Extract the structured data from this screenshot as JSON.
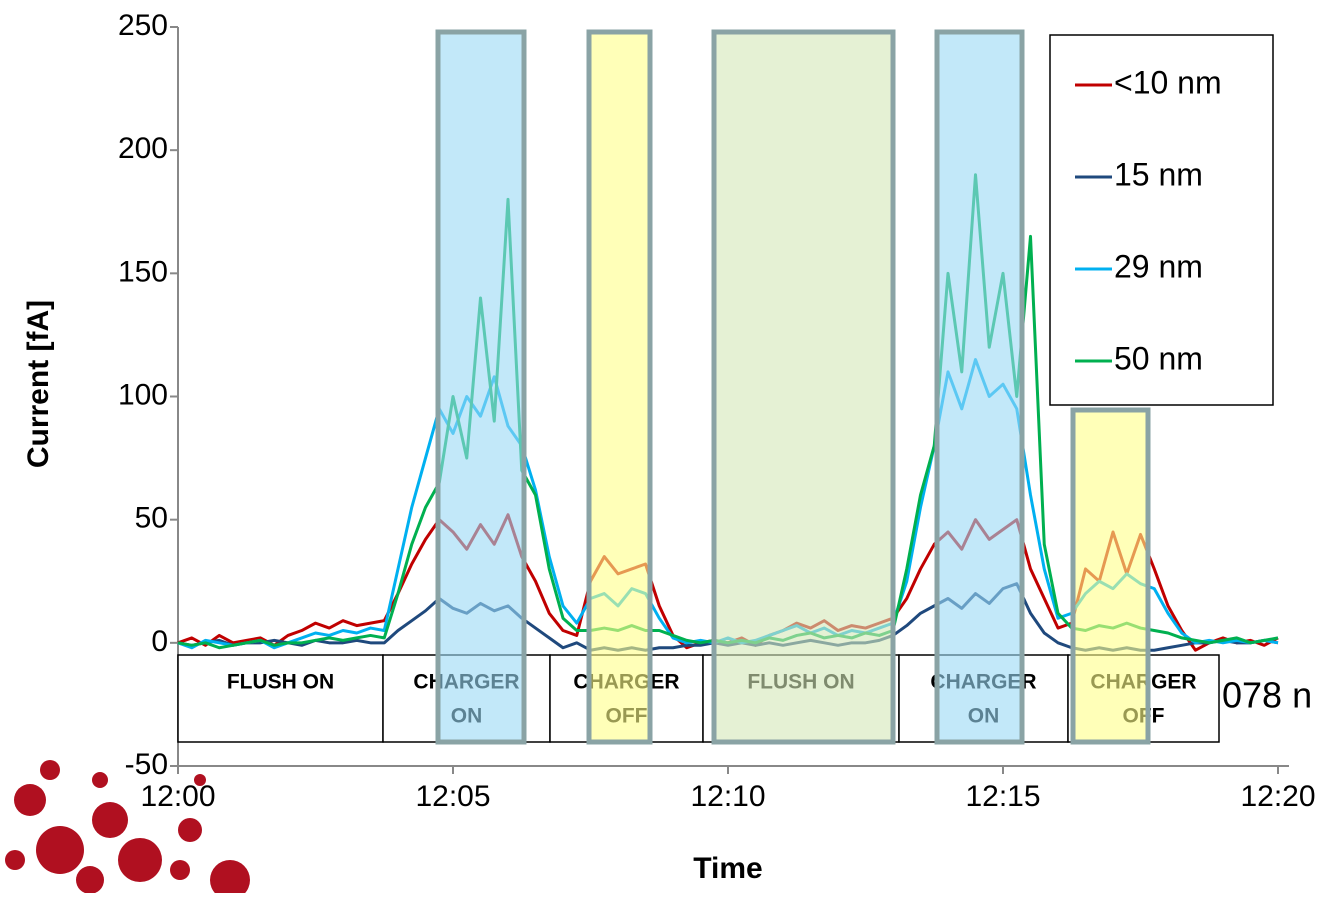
{
  "chart_data": {
    "type": "line",
    "x_label": "Time",
    "y_label": "Current [fA]",
    "xlim": [
      0,
      20.2
    ],
    "xticks": [
      {
        "value": 0,
        "label": "12:00"
      },
      {
        "value": 5,
        "label": "12:05"
      },
      {
        "value": 10,
        "label": "12:10"
      },
      {
        "value": 15,
        "label": "12:15"
      },
      {
        "value": 20,
        "label": "12:20"
      }
    ],
    "ylim": [
      -50,
      250
    ],
    "yticks": [
      -50,
      0,
      50,
      100,
      150,
      200,
      250
    ],
    "legend": "upper right",
    "phases": [
      [
        "FLUSH ON"
      ],
      [
        "CHARGER",
        "ON"
      ],
      [
        "CHARGER",
        "OFF"
      ],
      [
        "FLUSH ON"
      ],
      [
        "CHARGER",
        "ON"
      ],
      [
        "CHARGER",
        "OFF"
      ]
    ],
    "annotation": "078 n",
    "x": [
      0,
      0.25,
      0.5,
      0.75,
      1,
      1.25,
      1.5,
      1.75,
      2,
      2.25,
      2.5,
      2.75,
      3,
      3.25,
      3.5,
      3.75,
      4,
      4.25,
      4.5,
      4.75,
      5,
      5.25,
      5.5,
      5.75,
      6,
      6.25,
      6.5,
      6.75,
      7,
      7.25,
      7.5,
      7.75,
      8,
      8.25,
      8.5,
      8.75,
      9,
      9.25,
      9.5,
      9.75,
      10,
      10.25,
      10.5,
      10.75,
      11,
      11.25,
      11.5,
      11.75,
      12,
      12.25,
      12.5,
      12.75,
      13,
      13.25,
      13.5,
      13.75,
      14,
      14.25,
      14.5,
      14.75,
      15,
      15.25,
      15.5,
      15.75,
      16,
      16.25,
      16.5,
      16.75,
      17,
      17.25,
      17.5,
      17.75,
      18,
      18.25,
      18.5,
      18.75,
      19,
      19.25,
      19.5,
      19.75,
      20
    ],
    "series": [
      {
        "name": "<10 nm",
        "color": "#c00000",
        "values": [
          0,
          2,
          -1,
          3,
          0,
          1,
          2,
          -1,
          3,
          5,
          8,
          6,
          9,
          7,
          8,
          9,
          20,
          32,
          42,
          50,
          45,
          38,
          48,
          40,
          52,
          35,
          25,
          12,
          5,
          3,
          25,
          35,
          28,
          30,
          32,
          15,
          3,
          -2,
          0,
          1,
          0,
          2,
          -1,
          3,
          5,
          8,
          6,
          9,
          5,
          7,
          6,
          8,
          10,
          18,
          30,
          40,
          45,
          38,
          50,
          42,
          46,
          50,
          30,
          18,
          6,
          8,
          30,
          25,
          45,
          28,
          44,
          30,
          15,
          5,
          -3,
          0,
          2,
          0,
          1,
          -1,
          2
        ]
      },
      {
        "name": "15 nm",
        "color": "#1f497d",
        "values": [
          0,
          -1,
          0,
          1,
          -1,
          0,
          0,
          1,
          0,
          -1,
          1,
          0,
          0,
          1,
          0,
          0,
          5,
          9,
          13,
          18,
          14,
          12,
          16,
          13,
          15,
          10,
          6,
          2,
          -2,
          0,
          -3,
          -2,
          -3,
          -2,
          -3,
          -2,
          -2,
          -1,
          -1,
          0,
          -1,
          0,
          -1,
          0,
          -1,
          0,
          1,
          0,
          -1,
          0,
          0,
          1,
          3,
          7,
          12,
          15,
          18,
          14,
          20,
          16,
          22,
          24,
          12,
          4,
          0,
          -2,
          -3,
          -2,
          -3,
          -2,
          -3,
          -3,
          -2,
          -1,
          0,
          0,
          1,
          0,
          0,
          1,
          0
        ]
      },
      {
        "name": "29 nm",
        "color": "#00b0f0",
        "values": [
          0,
          -2,
          1,
          0,
          -1,
          0,
          1,
          -2,
          0,
          2,
          4,
          3,
          5,
          4,
          6,
          5,
          30,
          55,
          75,
          95,
          85,
          100,
          92,
          108,
          88,
          80,
          62,
          35,
          15,
          8,
          18,
          20,
          15,
          22,
          20,
          10,
          2,
          0,
          1,
          0,
          2,
          0,
          1,
          3,
          5,
          7,
          4,
          6,
          3,
          5,
          4,
          6,
          8,
          25,
          55,
          80,
          110,
          95,
          115,
          100,
          105,
          95,
          60,
          30,
          10,
          12,
          20,
          25,
          22,
          28,
          24,
          22,
          12,
          4,
          0,
          1,
          0,
          1,
          0,
          1,
          0
        ]
      },
      {
        "name": "50 nm",
        "color": "#00b050",
        "values": [
          0,
          -1,
          0,
          -2,
          -1,
          0,
          1,
          -1,
          0,
          0,
          1,
          2,
          1,
          2,
          3,
          2,
          20,
          40,
          55,
          65,
          100,
          75,
          140,
          90,
          180,
          70,
          60,
          30,
          10,
          5,
          5,
          6,
          5,
          7,
          5,
          5,
          3,
          1,
          0,
          1,
          0,
          1,
          0,
          2,
          1,
          3,
          4,
          2,
          3,
          2,
          4,
          3,
          5,
          30,
          60,
          80,
          150,
          110,
          190,
          120,
          150,
          100,
          165,
          40,
          12,
          6,
          5,
          7,
          6,
          8,
          6,
          5,
          4,
          2,
          1,
          0,
          1,
          2,
          0,
          1,
          2
        ]
      }
    ]
  }
}
